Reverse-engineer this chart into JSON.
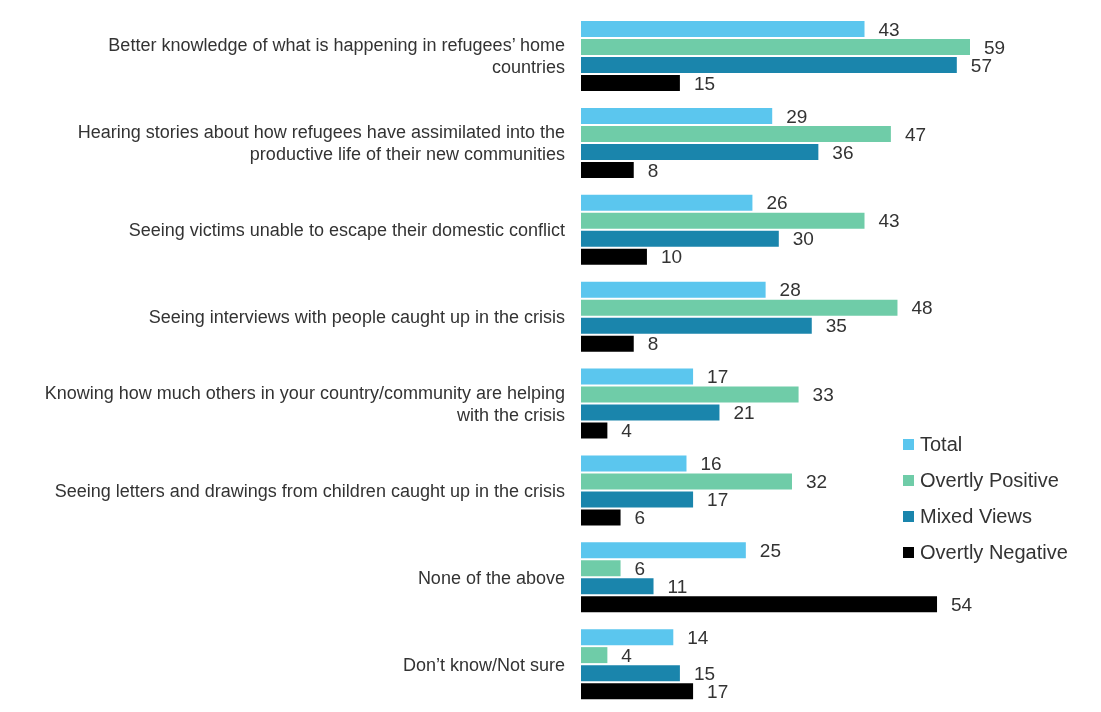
{
  "chart_data": {
    "type": "bar",
    "orientation": "horizontal",
    "data_labels": true,
    "legend": "right",
    "grid": false,
    "categories": [
      "Better knowledge of what is happening in refugees’ home countries",
      "Hearing stories about how refugees have assimilated into the productive life of their new communities",
      "Seeing victims unable to escape their domestic conflict",
      "Seeing interviews with people caught up in the crisis",
      "Knowing how much others in your country/community are helping with the crisis",
      "Seeing letters and drawings from children caught up in the crisis",
      "None of the above",
      "Don’t know/Not sure"
    ],
    "series": [
      {
        "name": "Total",
        "color": "#5bc6ee",
        "values": [
          43,
          29,
          26,
          28,
          17,
          16,
          25,
          14
        ]
      },
      {
        "name": "Overtly Positive",
        "color": "#6fcca8",
        "values": [
          59,
          47,
          43,
          48,
          33,
          32,
          6,
          4
        ]
      },
      {
        "name": "Mixed Views",
        "color": "#1a85ac",
        "values": [
          57,
          36,
          30,
          35,
          21,
          17,
          11,
          15
        ]
      },
      {
        "name": "Overtly Negative",
        "color": "#000000",
        "values": [
          15,
          8,
          10,
          8,
          4,
          6,
          54,
          17
        ]
      }
    ]
  }
}
